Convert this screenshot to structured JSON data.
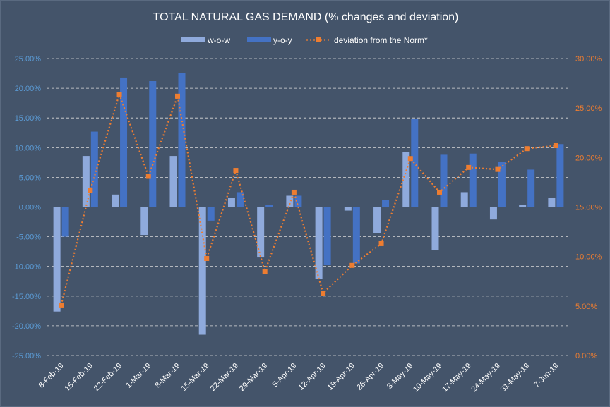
{
  "chart_data": {
    "type": "bar",
    "title": "TOTAL NATURAL GAS DEMAND (% changes and deviation)",
    "categories": [
      "8-Feb-19",
      "15-Feb-19",
      "22-Feb-19",
      "1-Mar-19",
      "8-Mar-19",
      "15-Mar-19",
      "22-Mar-19",
      "29-Mar-19",
      "5-Apr-19",
      "12-Apr-19",
      "19-Apr-19",
      "26-Apr-19",
      "3-May-19",
      "10-May-19",
      "17-May-19",
      "24-May-19",
      "31-May-19",
      "7-Jun-19"
    ],
    "series": [
      {
        "name": "w-o-w",
        "type": "bar",
        "axis": "left",
        "color": "#8faadc",
        "values": [
          -17.6,
          8.6,
          2.1,
          -4.7,
          8.6,
          -21.5,
          1.6,
          -8.5,
          1.9,
          -12.1,
          -0.6,
          -4.4,
          9.3,
          -7.2,
          2.5,
          -2.1,
          0.4,
          1.5
        ]
      },
      {
        "name": "y-o-y",
        "type": "bar",
        "axis": "left",
        "color": "#4472c4",
        "values": [
          -5.0,
          12.7,
          21.8,
          21.2,
          22.6,
          -2.3,
          2.5,
          0.4,
          1.9,
          -9.8,
          -9.5,
          1.2,
          14.8,
          8.8,
          9.0,
          7.6,
          6.3,
          10.6
        ]
      },
      {
        "name": "deviation from the Norm*",
        "type": "line",
        "axis": "right",
        "color": "#ed7d31",
        "values": [
          5.1,
          16.7,
          26.4,
          18.1,
          26.2,
          9.8,
          18.7,
          8.5,
          16.5,
          6.3,
          9.1,
          11.3,
          19.9,
          16.5,
          19.0,
          18.8,
          20.9,
          21.2
        ]
      }
    ],
    "left_axis": {
      "ylim": [
        -25,
        25
      ],
      "step": 5,
      "ticks": [
        "25.00%",
        "20.00%",
        "15.00%",
        "10.00%",
        "5.00%",
        "0.00%",
        "-5.00%",
        "-10.00%",
        "-15.00%",
        "-20.00%",
        "-25.00%"
      ],
      "color": "#5b9bd5"
    },
    "right_axis": {
      "ylim": [
        0,
        30
      ],
      "step": 5,
      "ticks": [
        "30.00%",
        "25.00%",
        "20.00%",
        "15.00%",
        "10.00%",
        "5.00%",
        "0.00%"
      ],
      "color": "#ed7d31"
    },
    "grid": true,
    "legend": "top"
  }
}
